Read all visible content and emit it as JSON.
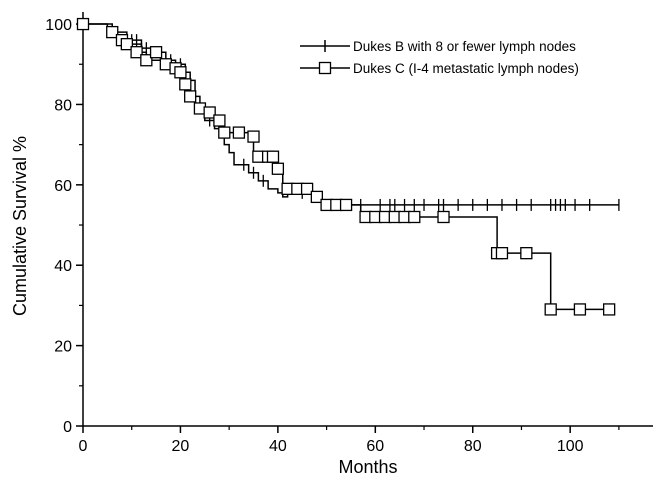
{
  "chart_data": {
    "type": "line",
    "subtype": "kaplan-meier step",
    "title": "",
    "xlabel": "Months",
    "ylabel": "Cumulative Survival %",
    "xlim": [
      0,
      117
    ],
    "ylim": [
      0,
      103
    ],
    "xticks": [
      0,
      20,
      40,
      60,
      80,
      100
    ],
    "yticks": [
      0,
      20,
      40,
      60,
      80,
      100
    ],
    "grid": false,
    "legend_position": "top-right",
    "series": [
      {
        "name": "Dukes B with 8 or fewer lymph nodes",
        "marker": "vertical-tick",
        "color": "#000000",
        "steps": [
          [
            0,
            100
          ],
          [
            6,
            98
          ],
          [
            9,
            96
          ],
          [
            12,
            94
          ],
          [
            14,
            93
          ],
          [
            17,
            91
          ],
          [
            19,
            90
          ],
          [
            21,
            88
          ],
          [
            22,
            86
          ],
          [
            23,
            82
          ],
          [
            24,
            78
          ],
          [
            25,
            76
          ],
          [
            27,
            74
          ],
          [
            29,
            70
          ],
          [
            30,
            68
          ],
          [
            31,
            65
          ],
          [
            34,
            63
          ],
          [
            36,
            61
          ],
          [
            38,
            59
          ],
          [
            40,
            58
          ],
          [
            41,
            57
          ],
          [
            42,
            59
          ],
          [
            44,
            58
          ],
          [
            48,
            57
          ],
          [
            49,
            55
          ],
          [
            110,
            55
          ]
        ],
        "censored": [
          [
            5,
            98
          ],
          [
            7,
            98
          ],
          [
            10,
            96
          ],
          [
            11,
            96
          ],
          [
            13,
            94
          ],
          [
            15,
            93
          ],
          [
            18,
            91
          ],
          [
            20,
            90
          ],
          [
            21,
            88
          ],
          [
            26,
            76
          ],
          [
            28,
            74
          ],
          [
            33,
            65
          ],
          [
            35,
            63
          ],
          [
            37,
            61
          ],
          [
            43,
            59
          ],
          [
            45,
            58
          ],
          [
            47,
            58
          ],
          [
            57,
            55
          ],
          [
            61,
            55
          ],
          [
            63,
            55
          ],
          [
            64,
            55
          ],
          [
            66,
            55
          ],
          [
            68,
            55
          ],
          [
            70,
            55
          ],
          [
            73,
            55
          ],
          [
            74,
            55
          ],
          [
            77,
            55
          ],
          [
            80,
            55
          ],
          [
            83,
            55
          ],
          [
            86,
            55
          ],
          [
            89,
            55
          ],
          [
            92,
            55
          ],
          [
            96,
            55
          ],
          [
            97,
            55
          ],
          [
            98,
            55
          ],
          [
            99,
            55
          ],
          [
            101,
            55
          ],
          [
            104,
            55
          ],
          [
            110,
            55
          ]
        ]
      },
      {
        "name": "Dukes C (I-4 metastatic lymph nodes)",
        "marker": "open-square",
        "color": "#000000",
        "steps": [
          [
            0,
            100
          ],
          [
            5,
            98
          ],
          [
            7,
            96
          ],
          [
            9,
            95
          ],
          [
            12,
            93
          ],
          [
            13,
            91
          ],
          [
            16,
            89
          ],
          [
            19,
            88
          ],
          [
            21,
            85
          ],
          [
            22,
            82
          ],
          [
            23,
            80
          ],
          [
            25,
            78
          ],
          [
            27,
            76
          ],
          [
            29,
            73
          ],
          [
            34,
            72
          ],
          [
            35,
            68
          ],
          [
            37,
            67
          ],
          [
            40,
            64
          ],
          [
            41,
            60
          ],
          [
            43,
            58
          ],
          [
            49,
            55
          ],
          [
            57,
            52
          ],
          [
            74,
            52
          ],
          [
            85,
            43
          ],
          [
            96,
            29
          ],
          [
            108,
            29
          ]
        ],
        "markers": [
          [
            0,
            100
          ],
          [
            6,
            98
          ],
          [
            8,
            96
          ],
          [
            9,
            95
          ],
          [
            11,
            93
          ],
          [
            13,
            91
          ],
          [
            15,
            93
          ],
          [
            17,
            90
          ],
          [
            19,
            89
          ],
          [
            20,
            88
          ],
          [
            21,
            85
          ],
          [
            22,
            82
          ],
          [
            24,
            79
          ],
          [
            26,
            78
          ],
          [
            28,
            76
          ],
          [
            29,
            73
          ],
          [
            32,
            73
          ],
          [
            35,
            72
          ],
          [
            36,
            67
          ],
          [
            38,
            67
          ],
          [
            39,
            67
          ],
          [
            40,
            64
          ],
          [
            42,
            59
          ],
          [
            44,
            59
          ],
          [
            46,
            59
          ],
          [
            48,
            57
          ],
          [
            50,
            55
          ],
          [
            52,
            55
          ],
          [
            54,
            55
          ],
          [
            58,
            52
          ],
          [
            60,
            52
          ],
          [
            62,
            52
          ],
          [
            64,
            52
          ],
          [
            66,
            52
          ],
          [
            68,
            52
          ],
          [
            74,
            52
          ],
          [
            85,
            43
          ],
          [
            86,
            43
          ],
          [
            91,
            43
          ],
          [
            96,
            29
          ],
          [
            102,
            29
          ],
          [
            108,
            29
          ]
        ]
      }
    ]
  }
}
